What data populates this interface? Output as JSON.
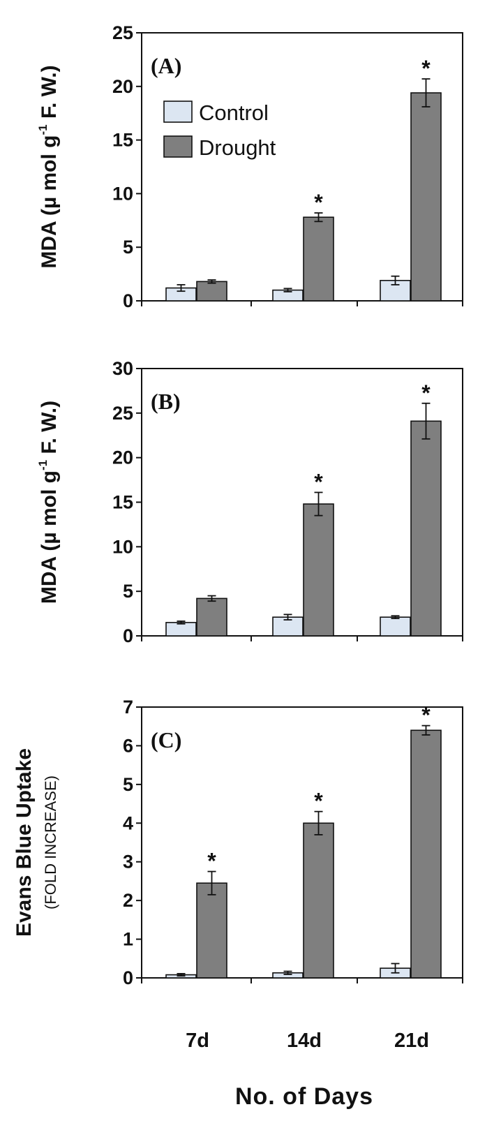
{
  "chart_data": [
    {
      "type": "bar",
      "panel_label": "(A)",
      "categories": [
        "7d",
        "14d",
        "21d"
      ],
      "series": [
        {
          "name": "Control",
          "values": [
            1.2,
            1.0,
            1.9
          ],
          "errors": [
            0.3,
            0.15,
            0.4
          ]
        },
        {
          "name": "Drought",
          "values": [
            1.8,
            7.8,
            19.4
          ],
          "errors": [
            0.15,
            0.4,
            1.3
          ]
        }
      ],
      "significance": [
        "",
        "*",
        "*"
      ],
      "ylim": [
        0,
        25
      ],
      "yticks": [
        0,
        5,
        10,
        15,
        20,
        25
      ],
      "ylabel_pre": "MDA (µ mol g",
      "ylabel_sup": "-1",
      "ylabel_post": " F. W.)",
      "legend": {
        "placement": "top-left",
        "entries": [
          "Control",
          "Drought"
        ]
      }
    },
    {
      "type": "bar",
      "panel_label": "(B)",
      "categories": [
        "7d",
        "14d",
        "21d"
      ],
      "series": [
        {
          "name": "Control",
          "values": [
            1.5,
            2.1,
            2.1
          ],
          "errors": [
            0.15,
            0.3,
            0.15
          ]
        },
        {
          "name": "Drought",
          "values": [
            4.2,
            14.8,
            24.1
          ],
          "errors": [
            0.3,
            1.3,
            2.0
          ]
        }
      ],
      "significance": [
        "",
        "*",
        "*"
      ],
      "ylim": [
        0,
        30
      ],
      "yticks": [
        0,
        5,
        10,
        15,
        20,
        25,
        30
      ],
      "ylabel_pre": "MDA (µ mol g",
      "ylabel_sup": "-1",
      "ylabel_post": " F. W.)"
    },
    {
      "type": "bar",
      "panel_label": "(C)",
      "categories": [
        "7d",
        "14d",
        "21d"
      ],
      "series": [
        {
          "name": "Control",
          "values": [
            0.08,
            0.13,
            0.25
          ],
          "errors": [
            0.03,
            0.04,
            0.12
          ]
        },
        {
          "name": "Drought",
          "values": [
            2.45,
            4.0,
            6.4
          ],
          "errors": [
            0.3,
            0.3,
            0.12
          ]
        }
      ],
      "significance": [
        "*",
        "*",
        "*"
      ],
      "ylim": [
        0,
        7
      ],
      "yticks": [
        0,
        1,
        2,
        3,
        4,
        5,
        6,
        7
      ],
      "ylabel_main": "Evans Blue Uptake",
      "ylabel_sub": "(FOLD INCREASE)",
      "xlabel": "No. of Days"
    }
  ],
  "colors": {
    "control": "#dce6f2",
    "drought": "#7f7f7f",
    "axis": "#111111"
  }
}
